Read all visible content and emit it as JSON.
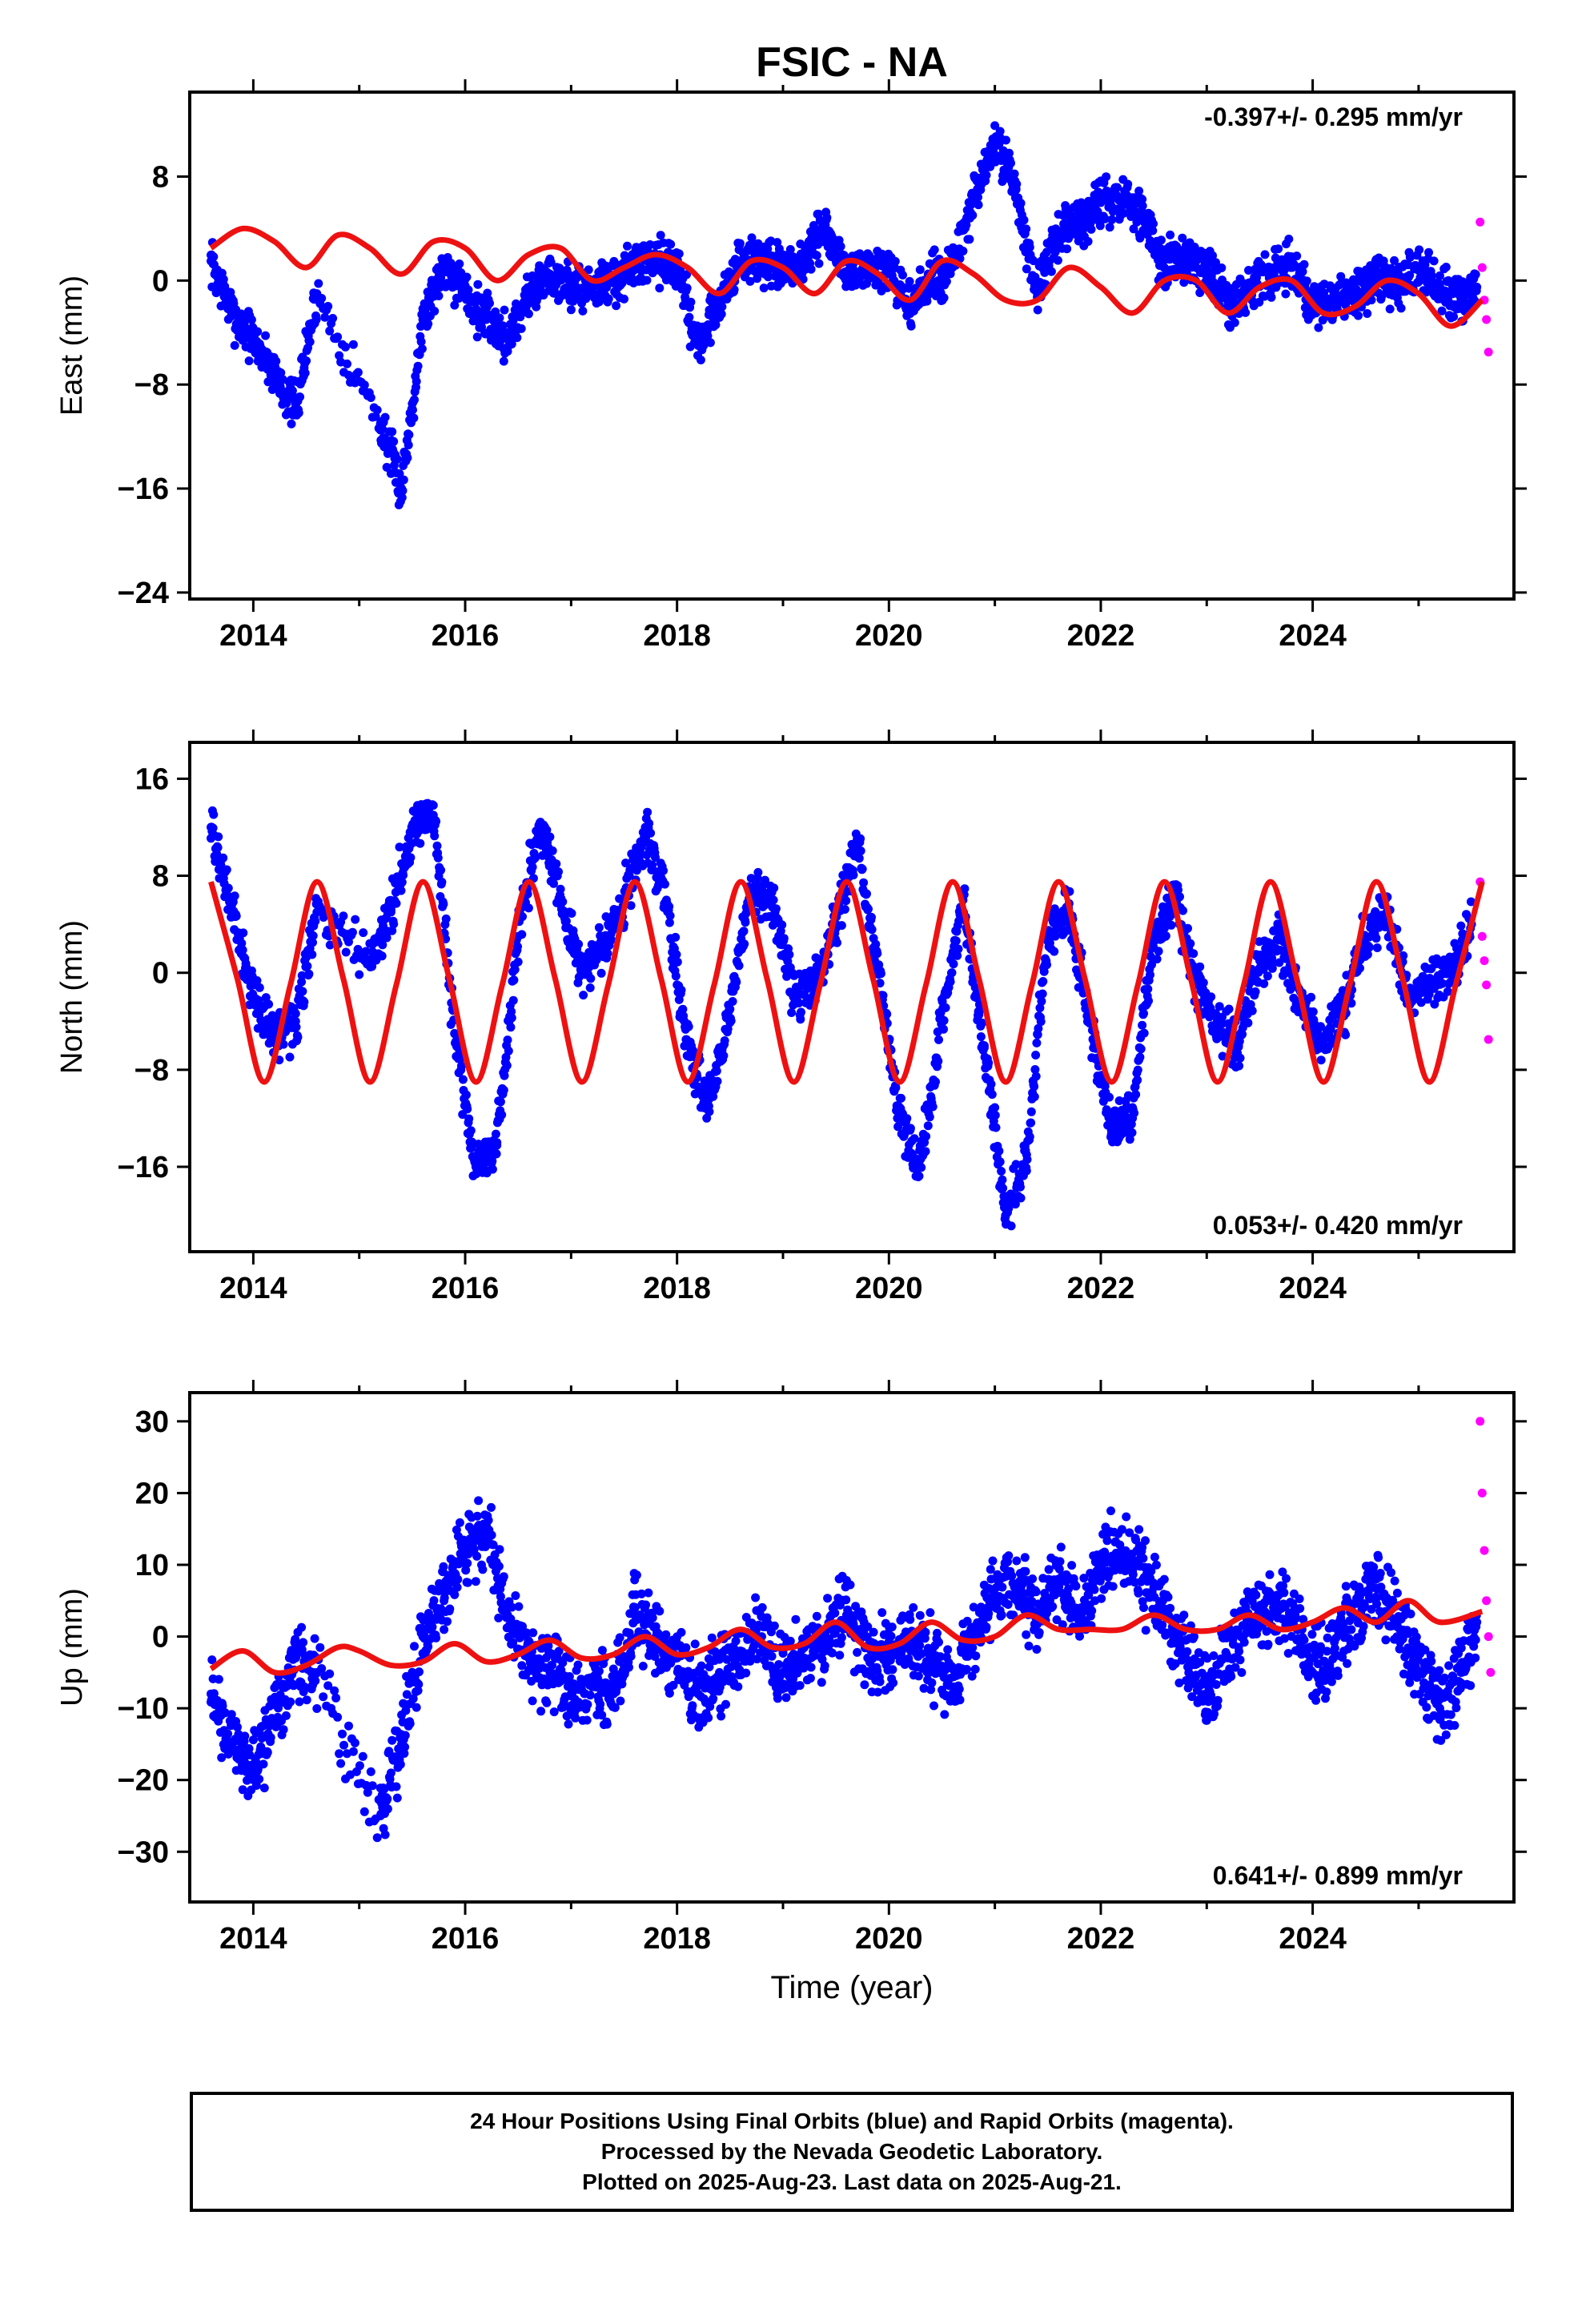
{
  "title": "FSIC - NA",
  "xlabel": "Time (year)",
  "xlim": [
    2013.4,
    2025.9
  ],
  "xticks": [
    2014,
    2016,
    2018,
    2020,
    2022,
    2024
  ],
  "colors": {
    "final_orbits": "#0000ff",
    "rapid_orbits": "#ff00ff",
    "model": "#ee1111"
  },
  "footer": {
    "line1": "24 Hour Positions Using Final Orbits (blue) and Rapid Orbits (magenta).",
    "line2": "Processed by the Nevada Geodetic Laboratory.",
    "line3": "Plotted on 2025-Aug-23. Last data on 2025-Aug-21."
  },
  "chart_data": [
    {
      "type": "scatter",
      "panel": "east",
      "ylabel": "East (mm)",
      "ylim": [
        -24.5,
        14.5
      ],
      "yticks": [
        8,
        0,
        -8,
        -16,
        -24
      ],
      "rate_label": "-0.397+/- 0.295 mm/yr",
      "rate_position": "top-right",
      "series": [
        {
          "name": "Final Orbits",
          "color": "#0000ff",
          "x": [
            2013.6,
            2013.8,
            2014.0,
            2014.2,
            2014.4,
            2014.6,
            2015.2,
            2015.4,
            2015.6,
            2015.8,
            2016.0,
            2016.2,
            2016.4,
            2016.6,
            2016.8,
            2017.0,
            2017.2,
            2017.4,
            2017.6,
            2017.8,
            2018.0,
            2018.2,
            2018.4,
            2018.6,
            2018.8,
            2019.0,
            2019.2,
            2019.4,
            2019.6,
            2019.8,
            2020.0,
            2020.2,
            2020.4,
            2020.6,
            2020.8,
            2021.0,
            2021.2,
            2021.4,
            2021.6,
            2021.8,
            2022.0,
            2022.2,
            2022.4,
            2022.6,
            2022.8,
            2023.0,
            2023.2,
            2023.4,
            2023.6,
            2023.8,
            2024.0,
            2024.2,
            2024.4,
            2024.6,
            2024.8,
            2025.0,
            2025.2,
            2025.4,
            2025.55
          ],
          "y": [
            1.5,
            -2.5,
            -4.5,
            -7,
            -10,
            -1,
            -11,
            -16,
            -3,
            1.5,
            -1,
            -3,
            -4.5,
            -1,
            0.5,
            -0.5,
            -0.5,
            0,
            1,
            2,
            1,
            -5,
            -1.5,
            1.5,
            1.5,
            0.5,
            1.5,
            4,
            0.5,
            1,
            0.5,
            -2,
            0,
            1,
            6,
            10.5,
            7,
            -1,
            3.5,
            4.5,
            6,
            6,
            5,
            1,
            2,
            1,
            -2,
            -0.5,
            0.5,
            1,
            -2,
            -1.5,
            -1,
            0,
            -0.5,
            1,
            -0.5,
            -1.5,
            -0.5
          ]
        },
        {
          "name": "Rapid Orbits",
          "color": "#ff00ff",
          "x": [
            2025.58,
            2025.6,
            2025.62,
            2025.64,
            2025.66
          ],
          "y": [
            4.5,
            1,
            -1.5,
            -3,
            -5.5
          ]
        }
      ],
      "model": {
        "x": [
          2013.6,
          2013.9,
          2014.2,
          2014.5,
          2014.8,
          2015.1,
          2015.4,
          2015.7,
          2016.0,
          2016.3,
          2016.6,
          2016.9,
          2017.2,
          2017.5,
          2017.8,
          2018.1,
          2018.4,
          2018.7,
          2019.0,
          2019.3,
          2019.6,
          2019.9,
          2020.2,
          2020.5,
          2020.8,
          2021.1,
          2021.4,
          2021.7,
          2022.0,
          2022.3,
          2022.6,
          2022.9,
          2023.2,
          2023.5,
          2023.8,
          2024.1,
          2024.4,
          2024.7,
          2025.0,
          2025.3,
          2025.6
        ],
        "y": [
          2.5,
          4,
          3,
          1,
          3.5,
          2.5,
          0.5,
          3,
          2.5,
          0,
          2,
          2.5,
          0,
          1,
          2,
          1,
          -1,
          1.5,
          1,
          -1,
          1.5,
          0.5,
          -1.5,
          1.5,
          0.5,
          -1.5,
          -1.5,
          1,
          -0.5,
          -2.5,
          0,
          0,
          -2.5,
          -0.5,
          0,
          -2.5,
          -2,
          0,
          -1,
          -3.5,
          -1.5
        ]
      }
    },
    {
      "type": "scatter",
      "panel": "north",
      "ylabel": "North (mm)",
      "ylim": [
        -23,
        19
      ],
      "yticks": [
        16,
        8,
        0,
        -8,
        -16
      ],
      "rate_label": "0.053+/- 0.420 mm/yr",
      "rate_position": "bottom-right",
      "series": [
        {
          "name": "Final Orbits",
          "color": "#0000ff",
          "x": [
            2013.6,
            2013.8,
            2014.0,
            2014.2,
            2014.4,
            2014.6,
            2015.1,
            2015.3,
            2015.5,
            2015.7,
            2015.9,
            2016.1,
            2016.3,
            2016.5,
            2016.7,
            2016.9,
            2017.1,
            2017.3,
            2017.5,
            2017.7,
            2017.9,
            2018.1,
            2018.3,
            2018.5,
            2018.7,
            2018.9,
            2019.1,
            2019.3,
            2019.5,
            2019.7,
            2019.9,
            2020.1,
            2020.3,
            2020.5,
            2020.7,
            2020.9,
            2021.1,
            2021.3,
            2021.5,
            2021.7,
            2021.9,
            2022.1,
            2022.3,
            2022.5,
            2022.7,
            2022.9,
            2023.1,
            2023.3,
            2023.5,
            2023.7,
            2023.9,
            2024.1,
            2024.3,
            2024.5,
            2024.7,
            2024.9,
            2025.1,
            2025.3,
            2025.5
          ],
          "y": [
            12,
            5,
            -2,
            -5,
            -4,
            5,
            1,
            5,
            12,
            13,
            -5,
            -16,
            -14,
            3,
            12,
            6,
            0,
            2,
            6,
            12,
            6,
            -6,
            -11,
            -3,
            7,
            6,
            -2,
            -1,
            4,
            11,
            0,
            -12,
            -16,
            -4,
            6,
            -6,
            -20,
            -15,
            3,
            5,
            -4,
            -13,
            -12,
            3,
            6,
            -1,
            -4,
            -6,
            1,
            3,
            -3,
            -6,
            -3,
            3,
            5,
            -2,
            -1,
            0,
            4
          ]
        },
        {
          "name": "Rapid Orbits",
          "color": "#ff00ff",
          "x": [
            2025.58,
            2025.6,
            2025.62,
            2025.64,
            2025.66
          ],
          "y": [
            7.5,
            3,
            1,
            -1,
            -5.5
          ]
        }
      ],
      "model": {
        "x": [
          2013.6,
          2013.85,
          2014.1,
          2014.35,
          2014.6,
          2014.85,
          2015.1,
          2015.35,
          2015.6,
          2015.85,
          2016.1,
          2016.35,
          2016.6,
          2016.85,
          2017.1,
          2017.35,
          2017.6,
          2017.85,
          2018.1,
          2018.35,
          2018.6,
          2018.85,
          2019.1,
          2019.35,
          2019.6,
          2019.85,
          2020.1,
          2020.35,
          2020.6,
          2020.85,
          2021.1,
          2021.35,
          2021.6,
          2021.85,
          2022.1,
          2022.35,
          2022.6,
          2022.85,
          2023.1,
          2023.35,
          2023.6,
          2023.85,
          2024.1,
          2024.35,
          2024.6,
          2024.85,
          2025.1,
          2025.35,
          2025.6
        ],
        "y": [
          7.5,
          -0.5,
          -9,
          -1,
          7.5,
          -0.5,
          -9,
          -1,
          7.5,
          -0.5,
          -9,
          -1,
          7.5,
          -0.5,
          -9,
          -1,
          7.5,
          -0.5,
          -9,
          -1,
          7.5,
          -0.5,
          -9,
          -1,
          7.5,
          -0.5,
          -9,
          -1,
          7.5,
          -0.5,
          -9,
          -1,
          7.5,
          -0.5,
          -9,
          -1,
          7.5,
          -0.5,
          -9,
          -1,
          7.5,
          -0.5,
          -9,
          -1,
          7.5,
          -0.5,
          -9,
          -1,
          7.5
        ]
      }
    },
    {
      "type": "scatter",
      "panel": "up",
      "ylabel": "Up (mm)",
      "ylim": [
        -37,
        34
      ],
      "yticks": [
        30,
        20,
        10,
        0,
        -10,
        -20,
        -30
      ],
      "rate_label": "0.641+/- 0.899 mm/yr",
      "rate_position": "bottom-right",
      "series": [
        {
          "name": "Final Orbits",
          "color": "#0000ff",
          "x": [
            2013.6,
            2013.8,
            2014.0,
            2014.2,
            2014.4,
            2014.6,
            2015.2,
            2015.4,
            2015.6,
            2015.8,
            2016.0,
            2016.2,
            2016.4,
            2016.6,
            2016.8,
            2017.0,
            2017.2,
            2017.4,
            2017.6,
            2017.8,
            2018.0,
            2018.2,
            2018.4,
            2018.6,
            2018.8,
            2019.0,
            2019.2,
            2019.4,
            2019.6,
            2019.8,
            2020.0,
            2020.2,
            2020.4,
            2020.6,
            2020.8,
            2021.0,
            2021.2,
            2021.4,
            2021.6,
            2021.8,
            2022.0,
            2022.2,
            2022.4,
            2022.6,
            2022.8,
            2023.0,
            2023.2,
            2023.4,
            2023.6,
            2023.8,
            2024.0,
            2024.2,
            2024.4,
            2024.6,
            2024.8,
            2025.0,
            2025.2,
            2025.4,
            2025.55
          ],
          "y": [
            -8,
            -15,
            -18,
            -12,
            -3,
            -5,
            -25,
            -15,
            0,
            5,
            12,
            15,
            3,
            -3,
            -5,
            -8,
            -7,
            -8,
            3,
            0,
            -3,
            -8,
            -5,
            -2,
            0,
            -5,
            -3,
            0,
            3,
            -3,
            -3,
            0,
            -3,
            -8,
            0,
            5,
            7,
            3,
            8,
            2,
            10,
            12,
            8,
            3,
            -3,
            -8,
            -3,
            2,
            5,
            3,
            -5,
            -2,
            3,
            8,
            2,
            -5,
            -10,
            -5,
            2
          ]
        },
        {
          "name": "Rapid Orbits",
          "color": "#ff00ff",
          "x": [
            2025.58,
            2025.6,
            2025.62,
            2025.64,
            2025.66,
            2025.68
          ],
          "y": [
            30,
            20,
            12,
            5,
            0,
            -5
          ]
        }
      ],
      "model": {
        "x": [
          2013.6,
          2013.9,
          2014.2,
          2014.5,
          2014.8,
          2015.0,
          2015.3,
          2015.6,
          2015.9,
          2016.2,
          2016.5,
          2016.8,
          2017.1,
          2017.4,
          2017.7,
          2018.0,
          2018.3,
          2018.6,
          2018.9,
          2019.2,
          2019.5,
          2019.8,
          2020.1,
          2020.4,
          2020.7,
          2021.0,
          2021.3,
          2021.6,
          2021.9,
          2022.2,
          2022.5,
          2022.8,
          2023.1,
          2023.4,
          2023.7,
          2024.0,
          2024.3,
          2024.6,
          2024.9,
          2025.2,
          2025.6
        ],
        "y": [
          -4.5,
          -2,
          -5,
          -4,
          -1.5,
          -2,
          -4,
          -3.5,
          -1,
          -3.5,
          -2.5,
          -0.5,
          -3,
          -2.5,
          0,
          -2.5,
          -1.5,
          1,
          -1.5,
          -1,
          2,
          -1.5,
          -1,
          2,
          -0.5,
          0,
          3,
          1,
          1,
          1,
          3,
          1,
          1,
          3,
          1,
          2,
          4,
          2,
          5,
          2,
          3.5
        ]
      }
    }
  ]
}
